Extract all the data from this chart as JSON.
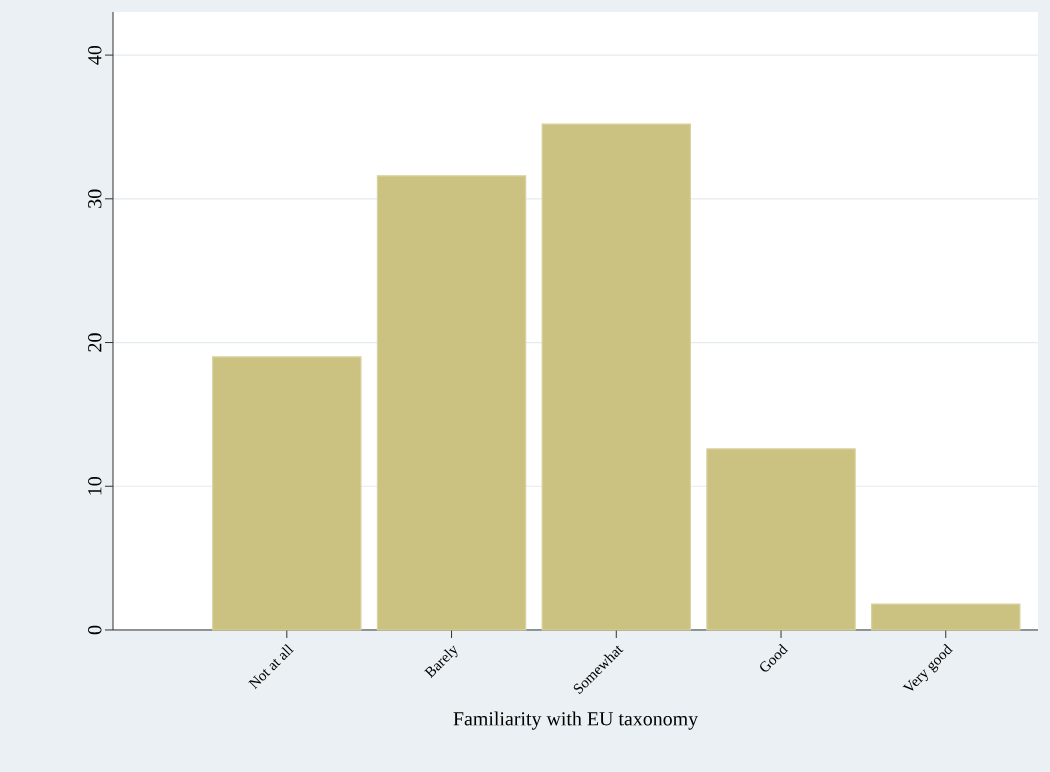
{
  "chart_data": {
    "type": "bar",
    "xlabel": "Familiarity with EU taxonomy",
    "categories": [
      "Not at all",
      "Barely",
      "Somewhat",
      "Good",
      "Very good"
    ],
    "values": [
      19.0,
      31.6,
      35.2,
      12.6,
      1.8
    ],
    "color": "#cbc281",
    "ylim": [
      0,
      43
    ],
    "yticks": [
      0,
      10,
      20,
      30,
      40
    ],
    "grid": "y"
  }
}
